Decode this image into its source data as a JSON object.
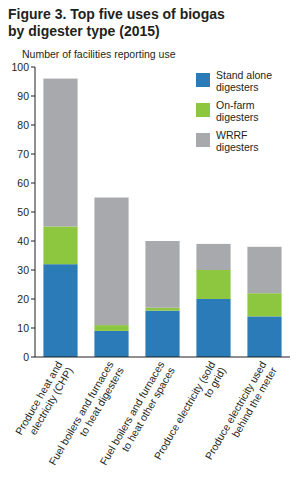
{
  "chart_data": {
    "type": "bar",
    "title": "Figure 3. Top five uses of biogas by digester type (2015)",
    "y_label": "Number of facilities reporting use",
    "categories": [
      "Produce heat and electricity (CHP)",
      "Fuel boilers and furnaces to heat digesters",
      "Fuel boilers and furnaces to heat other spaces",
      "Produce electricity (sold to grid)",
      "Produce electricity used behind the meter"
    ],
    "series": [
      {
        "name": "Stand alone digesters",
        "color": "#2b7bb9",
        "values": [
          32,
          9,
          16,
          20,
          14
        ]
      },
      {
        "name": "On-farm digesters",
        "color": "#8dc63f",
        "values": [
          13,
          2,
          1,
          10,
          8
        ]
      },
      {
        "name": "WRRF digesters",
        "color": "#a7a9ac",
        "values": [
          51,
          44,
          23,
          9,
          16
        ]
      }
    ],
    "ylim": [
      0,
      100
    ],
    "yticks": [
      0,
      10,
      20,
      30,
      40,
      50,
      60,
      70,
      80,
      90,
      100
    ],
    "stacked": true,
    "grid": false,
    "legend": "upper right"
  }
}
